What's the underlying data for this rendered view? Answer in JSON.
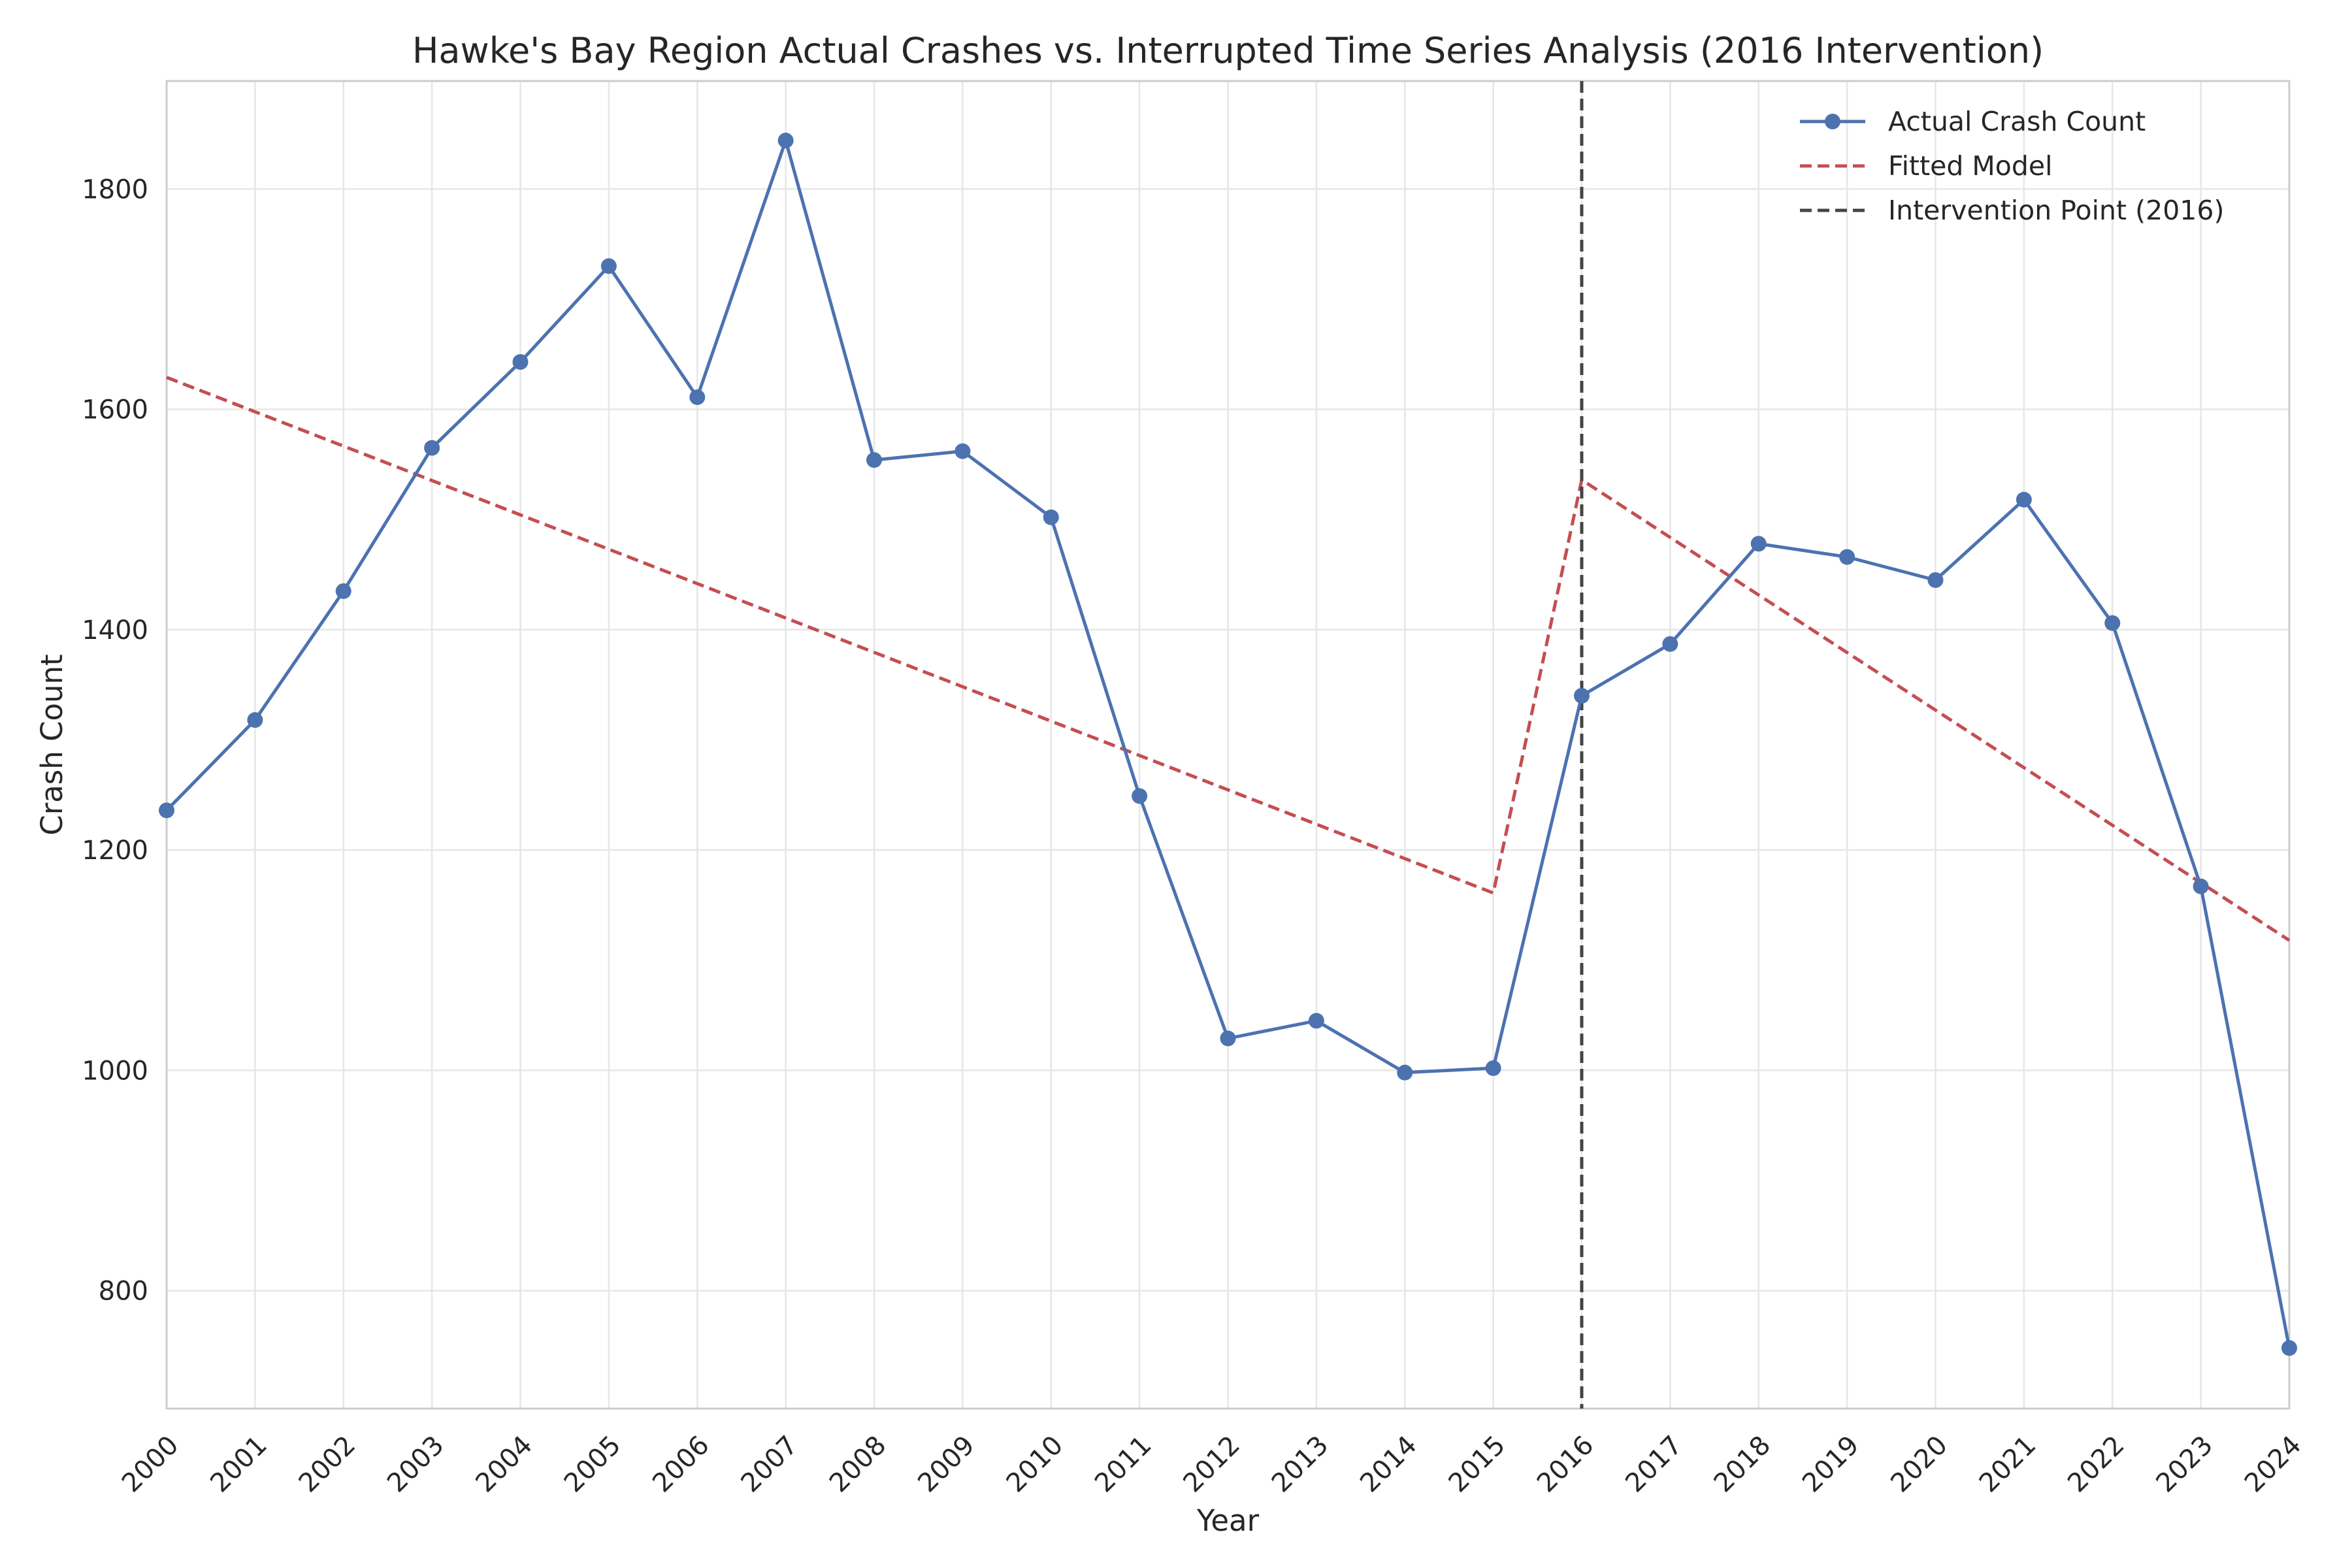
{
  "chart_data": {
    "type": "line",
    "title": "Hawke's Bay Region Actual Crashes vs. Interrupted Time Series Analysis (2016 Intervention)",
    "xlabel": "Year",
    "ylabel": "Crash Count",
    "x": [
      2000,
      2001,
      2002,
      2003,
      2004,
      2005,
      2006,
      2007,
      2008,
      2009,
      2010,
      2011,
      2012,
      2013,
      2014,
      2015,
      2016,
      2017,
      2018,
      2019,
      2020,
      2021,
      2022,
      2023,
      2024
    ],
    "xlim": [
      2000,
      2024
    ],
    "ylim": [
      693,
      1898
    ],
    "yticks": [
      800,
      1000,
      1200,
      1400,
      1600,
      1800
    ],
    "grid": true,
    "legend_position": "top-right",
    "series": [
      {
        "name": "Actual Crash Count",
        "style": "solid-with-markers",
        "color": "#4c72b0",
        "values": [
          1236,
          1318,
          1435,
          1565,
          1643,
          1730,
          1611,
          1844,
          1554,
          1562,
          1502,
          1249,
          1029,
          1045,
          998,
          1002,
          1340,
          1387,
          1478,
          1466,
          1445,
          1518,
          1406,
          1167,
          748
        ]
      },
      {
        "name": "Fitted Model",
        "style": "dashed",
        "color": "#c44e52",
        "x": [
          2000,
          2015,
          2016,
          2024
        ],
        "values": [
          1629,
          1161,
          1536,
          1118
        ]
      }
    ],
    "reference_lines": [
      {
        "name": "Intervention Point (2016)",
        "x": 2016,
        "style": "dashed",
        "color": "#444444"
      }
    ]
  }
}
